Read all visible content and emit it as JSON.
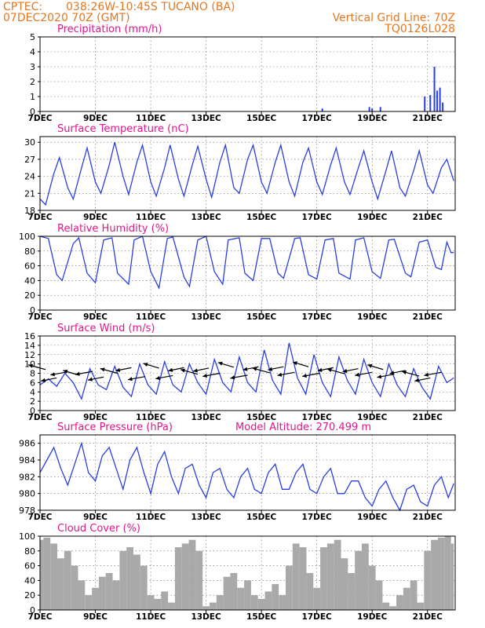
{
  "header": {
    "source": "CPTEC:",
    "location": "038:26W-10:45S  TUCANO (BA)",
    "run": "07DEC2020 70Z (GMT)",
    "grid_note": "Vertical Grid Line: 70Z",
    "code": "TQ0126L028"
  },
  "colors": {
    "header": "#e8761d",
    "titles": "#e0168a",
    "line": "#2b3fe0",
    "fill": "#a9a9a9",
    "arrows": "#000000"
  },
  "x_axis": {
    "ticks": [
      "7DEC",
      "9DEC",
      "11DEC",
      "13DEC",
      "15DEC",
      "17DEC",
      "19DEC",
      "21DEC"
    ],
    "unit_hint": "days from 7 Dec 2020 to 22 Dec 2020"
  },
  "chart_data": [
    {
      "id": "precip",
      "type": "bar",
      "title": "Precipitation (mm/h)",
      "ylim": [
        0,
        5
      ],
      "yticks": [
        0,
        1,
        2,
        3,
        4,
        5
      ],
      "x": [
        17.2,
        18.9,
        19.0,
        19.3,
        20.9,
        21.1,
        21.25,
        21.35,
        21.45,
        21.55
      ],
      "values": [
        0.2,
        0.3,
        0.2,
        0.3,
        1.0,
        1.1,
        3.0,
        1.4,
        1.6,
        0.6
      ]
    },
    {
      "id": "temp",
      "type": "line",
      "title": "Surface Temperature (nC)",
      "ylim": [
        18,
        31
      ],
      "yticks": [
        18,
        21,
        24,
        27,
        30
      ],
      "x": [
        7.0,
        7.2,
        7.5,
        7.7,
        8.0,
        8.2,
        8.5,
        8.7,
        9.0,
        9.2,
        9.5,
        9.7,
        10.0,
        10.2,
        10.5,
        10.7,
        11.0,
        11.2,
        11.5,
        11.7,
        12.0,
        12.2,
        12.5,
        12.7,
        13.0,
        13.2,
        13.5,
        13.7,
        14.0,
        14.2,
        14.5,
        14.7,
        15.0,
        15.2,
        15.5,
        15.7,
        16.0,
        16.2,
        16.5,
        16.7,
        17.0,
        17.2,
        17.5,
        17.7,
        18.0,
        18.2,
        18.5,
        18.7,
        19.0,
        19.2,
        19.5,
        19.7,
        20.0,
        20.2,
        20.5,
        20.7,
        21.0,
        21.2,
        21.5,
        21.7,
        21.95
      ],
      "values": [
        20.0,
        19.0,
        24.5,
        27.3,
        22.0,
        20.0,
        25.5,
        29.0,
        23.0,
        21.0,
        26.0,
        30.0,
        24.0,
        20.8,
        26.5,
        29.5,
        23.0,
        20.5,
        25.5,
        29.5,
        23.5,
        20.5,
        26.0,
        29.3,
        23.5,
        20.3,
        26.5,
        29.5,
        22.0,
        21.0,
        27.0,
        29.5,
        23.0,
        21.0,
        26.5,
        29.5,
        23.0,
        20.5,
        26.5,
        29.0,
        23.0,
        20.8,
        26.0,
        29.0,
        23.0,
        20.8,
        25.5,
        28.5,
        23.0,
        20.0,
        25.0,
        28.5,
        22.0,
        20.5,
        25.0,
        28.5,
        22.5,
        21.0,
        25.5,
        27.0,
        23.2
      ]
    },
    {
      "id": "rh",
      "type": "line",
      "title": "Relative Humidity (%)",
      "ylim": [
        0,
        100
      ],
      "yticks": [
        0,
        20,
        40,
        60,
        80,
        100
      ],
      "x": [
        7.0,
        7.3,
        7.6,
        7.8,
        8.2,
        8.4,
        8.7,
        9.0,
        9.3,
        9.6,
        9.8,
        10.2,
        10.4,
        10.7,
        11.0,
        11.3,
        11.6,
        11.8,
        12.2,
        12.4,
        12.7,
        13.0,
        13.3,
        13.6,
        13.8,
        14.2,
        14.4,
        14.7,
        15.0,
        15.3,
        15.6,
        15.8,
        16.2,
        16.4,
        16.7,
        17.0,
        17.3,
        17.6,
        17.8,
        18.2,
        18.4,
        18.7,
        19.0,
        19.3,
        19.6,
        19.8,
        20.2,
        20.4,
        20.7,
        21.0,
        21.3,
        21.5,
        21.7,
        21.85,
        21.95
      ],
      "values": [
        100,
        97,
        48,
        40,
        90,
        98,
        50,
        37,
        95,
        98,
        50,
        35,
        95,
        100,
        52,
        30,
        97,
        99,
        45,
        32,
        95,
        100,
        52,
        35,
        95,
        98,
        50,
        40,
        97,
        97,
        50,
        43,
        97,
        98,
        48,
        42,
        95,
        97,
        50,
        42,
        95,
        98,
        52,
        43,
        95,
        96,
        50,
        45,
        92,
        95,
        58,
        55,
        92,
        78,
        78
      ]
    },
    {
      "id": "wind",
      "type": "line",
      "title": "Surface Wind (m/s)",
      "ylim": [
        0,
        16
      ],
      "yticks": [
        0,
        2,
        4,
        6,
        8,
        10,
        12,
        14,
        16
      ],
      "x": [
        7.0,
        7.3,
        7.6,
        7.9,
        8.2,
        8.5,
        8.8,
        9.1,
        9.4,
        9.7,
        10.0,
        10.3,
        10.6,
        10.9,
        11.2,
        11.5,
        11.8,
        12.1,
        12.4,
        12.7,
        13.0,
        13.3,
        13.6,
        13.9,
        14.2,
        14.5,
        14.8,
        15.1,
        15.4,
        15.7,
        16.0,
        16.3,
        16.6,
        16.9,
        17.2,
        17.5,
        17.8,
        18.1,
        18.4,
        18.7,
        19.0,
        19.3,
        19.6,
        19.9,
        20.2,
        20.5,
        20.8,
        21.1,
        21.4,
        21.7,
        21.95
      ],
      "values": [
        5.5,
        6.8,
        5.2,
        8.0,
        6.0,
        2.5,
        9.0,
        5.5,
        4.5,
        9.5,
        5.0,
        3.0,
        10.0,
        5.5,
        3.5,
        10.5,
        5.5,
        4.0,
        10.0,
        6.0,
        3.5,
        11.0,
        6.0,
        4.0,
        11.5,
        6.0,
        4.0,
        13.0,
        6.5,
        3.5,
        14.5,
        7.0,
        3.5,
        12.0,
        6.0,
        3.0,
        11.5,
        6.5,
        3.5,
        11.0,
        6.0,
        3.0,
        10.0,
        5.5,
        3.0,
        9.0,
        5.0,
        2.5,
        9.5,
        6.0,
        7.0
      ],
      "arrows": [
        [
          7.2,
          8.8
        ],
        [
          7.6,
          7.0
        ],
        [
          8.0,
          8.3
        ],
        [
          8.4,
          7.6
        ],
        [
          8.9,
          8.4
        ],
        [
          9.3,
          7.2
        ],
        [
          9.8,
          8.0
        ],
        [
          10.3,
          9.2
        ],
        [
          10.8,
          7.3
        ],
        [
          11.3,
          9.1
        ],
        [
          11.8,
          7.5
        ],
        [
          12.2,
          9.2
        ],
        [
          12.7,
          7.8
        ],
        [
          13.1,
          9.1
        ],
        [
          13.5,
          8.0
        ],
        [
          14.0,
          9.3
        ],
        [
          14.5,
          7.6
        ],
        [
          14.9,
          9.4
        ],
        [
          15.3,
          8.1
        ],
        [
          15.8,
          9.4
        ],
        [
          16.2,
          8.2
        ],
        [
          16.7,
          9.4
        ],
        [
          17.1,
          8.0
        ],
        [
          17.6,
          9.2
        ],
        [
          18.0,
          7.9
        ],
        [
          18.5,
          9.0
        ],
        [
          19.0,
          8.2
        ],
        [
          19.4,
          8.8
        ],
        [
          19.8,
          7.8
        ],
        [
          20.2,
          8.6
        ],
        [
          20.7,
          7.4
        ],
        [
          21.1,
          7.0
        ],
        [
          21.5,
          8.2
        ]
      ]
    },
    {
      "id": "pressure",
      "type": "line",
      "title": "Surface Pressure (hPa)",
      "annotation": "Model Altitude: 270.499 m",
      "ylim": [
        978,
        987
      ],
      "yticks": [
        978,
        980,
        982,
        984,
        986
      ],
      "x": [
        7.0,
        7.25,
        7.5,
        7.75,
        8.0,
        8.25,
        8.5,
        8.75,
        9.0,
        9.25,
        9.5,
        9.75,
        10.0,
        10.25,
        10.5,
        10.75,
        11.0,
        11.25,
        11.5,
        11.75,
        12.0,
        12.25,
        12.5,
        12.75,
        13.0,
        13.25,
        13.5,
        13.75,
        14.0,
        14.25,
        14.5,
        14.75,
        15.0,
        15.25,
        15.5,
        15.75,
        16.0,
        16.25,
        16.5,
        16.75,
        17.0,
        17.25,
        17.5,
        17.75,
        18.0,
        18.25,
        18.5,
        18.75,
        19.0,
        19.25,
        19.5,
        19.75,
        20.0,
        20.25,
        20.5,
        20.75,
        21.0,
        21.25,
        21.5,
        21.75,
        21.95
      ],
      "values": [
        982.5,
        984.0,
        985.5,
        983.0,
        981.0,
        983.5,
        986.0,
        982.5,
        981.5,
        984.5,
        985.5,
        983.0,
        980.5,
        984.0,
        985.5,
        982.5,
        980.0,
        983.5,
        985.0,
        982.0,
        980.0,
        983.0,
        983.5,
        981.0,
        979.5,
        982.5,
        983.0,
        980.5,
        979.5,
        982.0,
        983.0,
        980.5,
        980.0,
        982.5,
        983.5,
        980.5,
        980.5,
        982.5,
        983.5,
        980.5,
        980.0,
        982.0,
        983.0,
        980.0,
        980.0,
        981.5,
        981.5,
        979.5,
        978.5,
        980.5,
        981.5,
        979.5,
        978.0,
        980.5,
        981.0,
        979.0,
        978.5,
        981.0,
        982.0,
        979.5,
        981.2
      ]
    },
    {
      "id": "cloud",
      "type": "area",
      "title": "Cloud Cover (%)",
      "ylim": [
        0,
        100
      ],
      "yticks": [
        0,
        20,
        40,
        60,
        80,
        100
      ],
      "x": [
        7.0,
        7.25,
        7.5,
        7.75,
        8.0,
        8.25,
        8.5,
        8.75,
        9.0,
        9.25,
        9.5,
        9.75,
        10.0,
        10.25,
        10.5,
        10.75,
        11.0,
        11.25,
        11.5,
        11.75,
        12.0,
        12.25,
        12.5,
        12.75,
        13.0,
        13.25,
        13.5,
        13.75,
        14.0,
        14.25,
        14.5,
        14.75,
        15.0,
        15.25,
        15.5,
        15.75,
        16.0,
        16.25,
        16.5,
        16.75,
        17.0,
        17.25,
        17.5,
        17.75,
        18.0,
        18.25,
        18.5,
        18.75,
        19.0,
        19.25,
        19.5,
        19.75,
        20.0,
        20.25,
        20.5,
        20.75,
        21.0,
        21.25,
        21.5,
        21.75,
        21.95
      ],
      "values": [
        95,
        98,
        90,
        70,
        80,
        60,
        40,
        20,
        30,
        45,
        50,
        40,
        80,
        85,
        75,
        60,
        20,
        15,
        25,
        10,
        85,
        90,
        95,
        80,
        5,
        10,
        20,
        45,
        50,
        30,
        40,
        20,
        15,
        25,
        35,
        20,
        60,
        90,
        85,
        50,
        30,
        85,
        90,
        95,
        70,
        50,
        80,
        90,
        60,
        40,
        10,
        5,
        20,
        30,
        40,
        10,
        80,
        95,
        98,
        100,
        90
      ]
    }
  ]
}
